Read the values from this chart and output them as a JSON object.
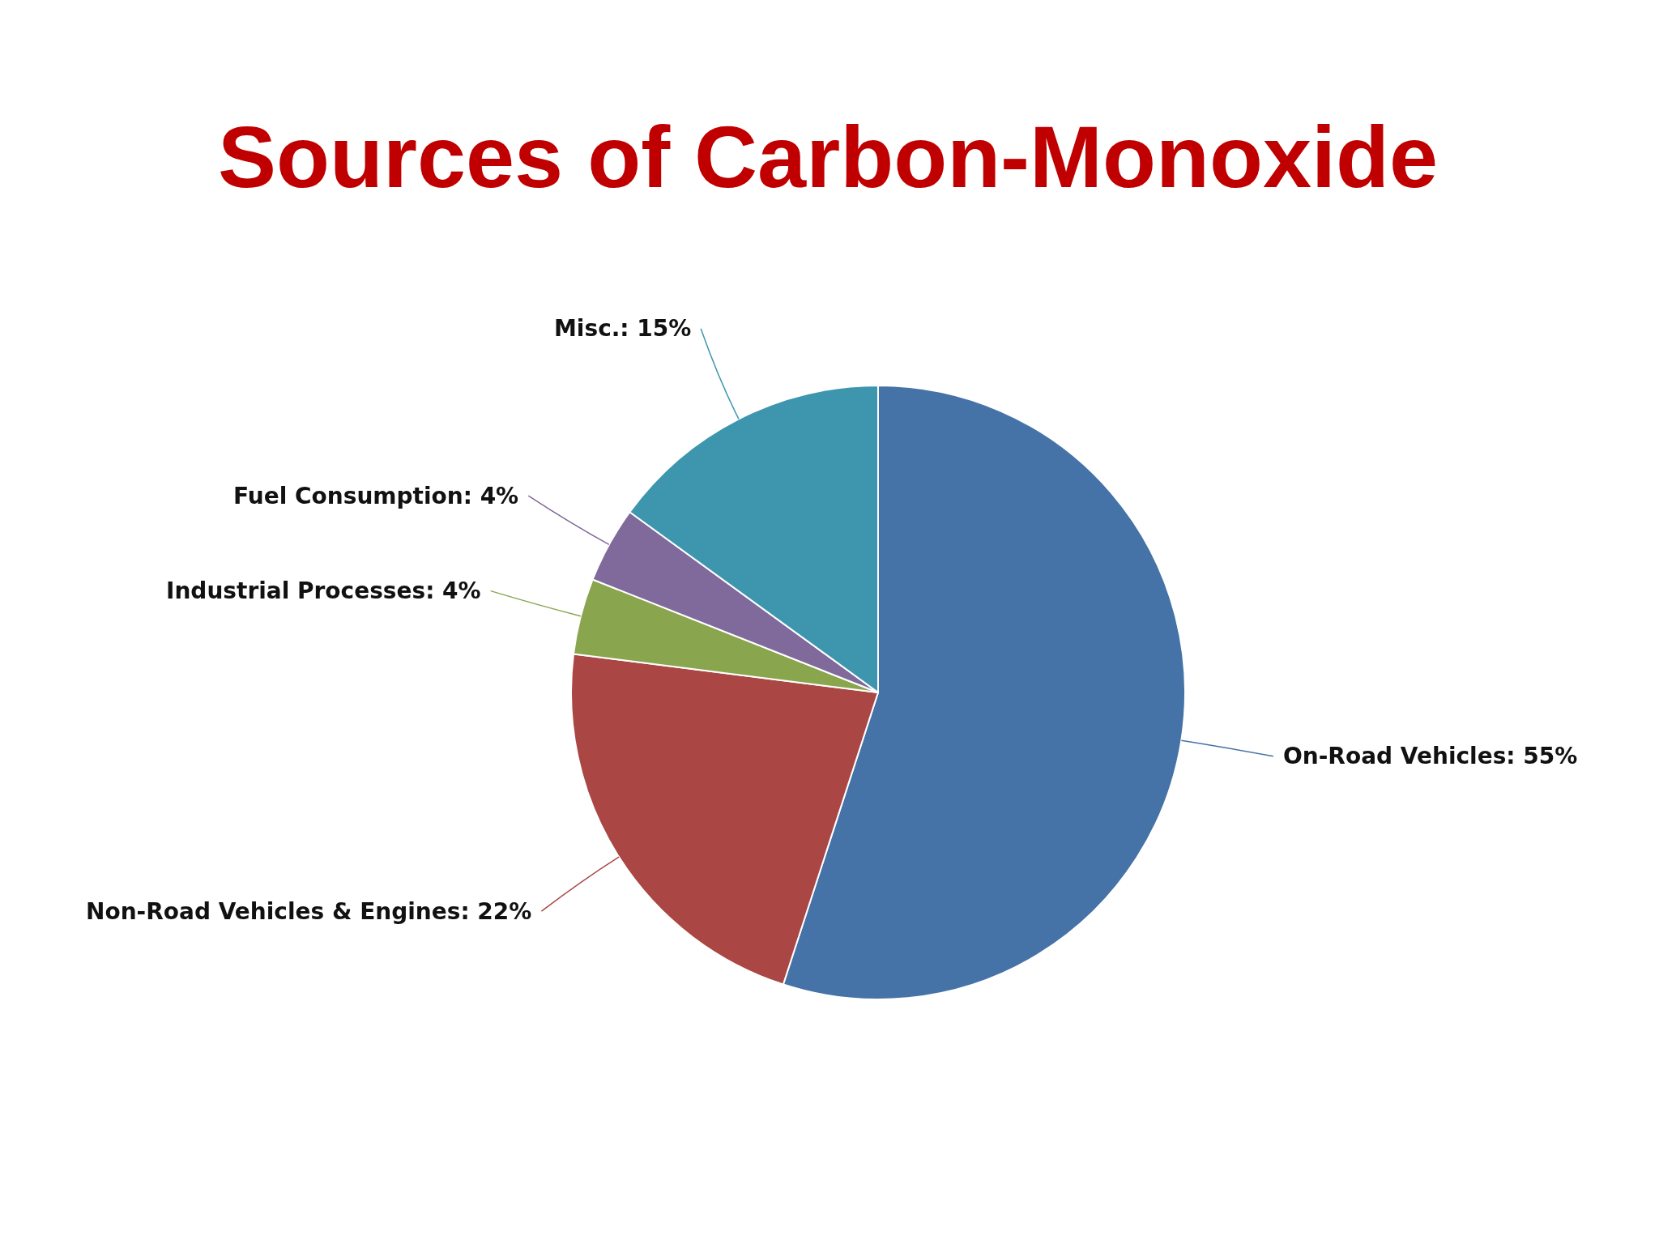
{
  "chart_data": {
    "type": "pie",
    "title": "Sources of Carbon-Monoxide",
    "categories": [
      "On-Road Vehicles: 55%",
      "Non-Road Vehicles & Engines: 22%",
      "Industrial Processes: 4%",
      "Fuel Consumption: 4%",
      "Misc.: 15%"
    ],
    "values": [
      55,
      22,
      4,
      4,
      15
    ],
    "colors": [
      "#4572a7",
      "#aa4643",
      "#89a54e",
      "#80699b",
      "#3d96ae"
    ]
  }
}
